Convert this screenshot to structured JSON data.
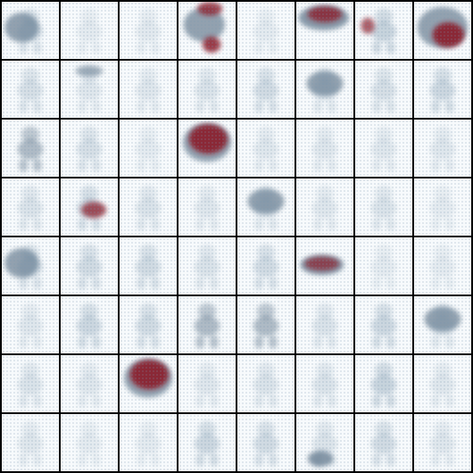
{
  "grid": {
    "rows": 8,
    "cols": 8
  },
  "palette": {
    "border": "#000000",
    "background": "#f7fafc",
    "blue_gray": "#5f7f99",
    "blue_gray_dark": "#3f5a72",
    "maroon": "#8a1d2a"
  },
  "tiles": [
    {
      "intensity": 0.55,
      "variant": "blob_left"
    },
    {
      "intensity": 0.2,
      "variant": "figure"
    },
    {
      "intensity": 0.22,
      "variant": "figure"
    },
    {
      "intensity": 0.85,
      "variant": "red_blob_two"
    },
    {
      "intensity": 0.2,
      "variant": "figure"
    },
    {
      "intensity": 0.9,
      "variant": "red_top"
    },
    {
      "intensity": 0.7,
      "variant": "red_left_figure"
    },
    {
      "intensity": 0.95,
      "variant": "red_big"
    },
    {
      "intensity": 0.35,
      "variant": "figure"
    },
    {
      "intensity": 0.35,
      "variant": "figure_topblob"
    },
    {
      "intensity": 0.1,
      "variant": "faint"
    },
    {
      "intensity": 0.3,
      "variant": "figure"
    },
    {
      "intensity": 0.4,
      "variant": "figure"
    },
    {
      "intensity": 0.55,
      "variant": "blob_mid"
    },
    {
      "intensity": 0.35,
      "variant": "figure"
    },
    {
      "intensity": 0.45,
      "variant": "figure"
    },
    {
      "intensity": 0.55,
      "variant": "figure_dark"
    },
    {
      "intensity": 0.35,
      "variant": "figure"
    },
    {
      "intensity": 0.2,
      "variant": "figure"
    },
    {
      "intensity": 0.95,
      "variant": "red_head"
    },
    {
      "intensity": 0.1,
      "variant": "faint"
    },
    {
      "intensity": 0.1,
      "variant": "faint"
    },
    {
      "intensity": 0.1,
      "variant": "faint"
    },
    {
      "intensity": 0.1,
      "variant": "faint"
    },
    {
      "intensity": 0.3,
      "variant": "figure"
    },
    {
      "intensity": 0.8,
      "variant": "red_mid"
    },
    {
      "intensity": 0.3,
      "variant": "figure"
    },
    {
      "intensity": 0.12,
      "variant": "faint"
    },
    {
      "intensity": 0.55,
      "variant": "blob_mid"
    },
    {
      "intensity": 0.1,
      "variant": "faint"
    },
    {
      "intensity": 0.3,
      "variant": "figure"
    },
    {
      "intensity": 0.2,
      "variant": "figure"
    },
    {
      "intensity": 0.55,
      "variant": "blob_left"
    },
    {
      "intensity": 0.4,
      "variant": "figure"
    },
    {
      "intensity": 0.4,
      "variant": "figure"
    },
    {
      "intensity": 0.3,
      "variant": "figure"
    },
    {
      "intensity": 0.4,
      "variant": "figure"
    },
    {
      "intensity": 0.75,
      "variant": "red_wide"
    },
    {
      "intensity": 0.2,
      "variant": "figure"
    },
    {
      "intensity": 0.2,
      "variant": "figure"
    },
    {
      "intensity": 0.25,
      "variant": "figure"
    },
    {
      "intensity": 0.45,
      "variant": "figure"
    },
    {
      "intensity": 0.4,
      "variant": "figure"
    },
    {
      "intensity": 0.55,
      "variant": "figure_dark"
    },
    {
      "intensity": 0.55,
      "variant": "figure_dark"
    },
    {
      "intensity": 0.3,
      "variant": "figure"
    },
    {
      "intensity": 0.45,
      "variant": "figure"
    },
    {
      "intensity": 0.5,
      "variant": "blob_mid"
    },
    {
      "intensity": 0.3,
      "variant": "figure"
    },
    {
      "intensity": 0.1,
      "variant": "faint"
    },
    {
      "intensity": 0.95,
      "variant": "red_head"
    },
    {
      "intensity": 0.15,
      "variant": "faint"
    },
    {
      "intensity": 0.3,
      "variant": "figure"
    },
    {
      "intensity": 0.3,
      "variant": "figure"
    },
    {
      "intensity": 0.5,
      "variant": "figure"
    },
    {
      "intensity": 0.25,
      "variant": "figure"
    },
    {
      "intensity": 0.25,
      "variant": "figure"
    },
    {
      "intensity": 0.2,
      "variant": "figure"
    },
    {
      "intensity": 0.2,
      "variant": "figure"
    },
    {
      "intensity": 0.45,
      "variant": "figure"
    },
    {
      "intensity": 0.4,
      "variant": "figure"
    },
    {
      "intensity": 0.55,
      "variant": "figure_bottom"
    },
    {
      "intensity": 0.4,
      "variant": "figure"
    },
    {
      "intensity": 0.25,
      "variant": "figure"
    }
  ]
}
